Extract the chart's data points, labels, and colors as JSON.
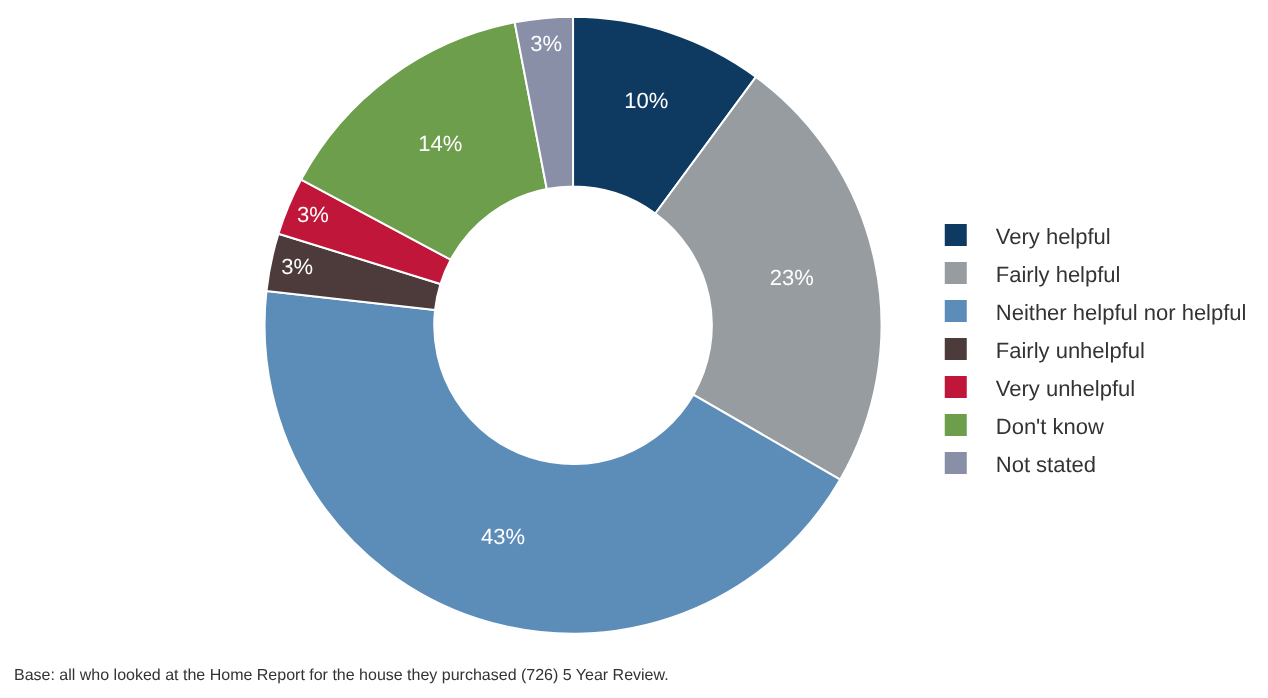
{
  "chart_data": {
    "type": "donut",
    "categories": [
      "Very helpful",
      "Fairly helpful",
      "Neither helpful nor helpful",
      "Fairly unhelpful",
      "Very unhelpful",
      "Don't know",
      "Not stated"
    ],
    "values": [
      10,
      23,
      43,
      3,
      3,
      14,
      3
    ],
    "value_labels": [
      "10%",
      "23%",
      "43%",
      "3%",
      "3%",
      "14%",
      "3%"
    ],
    "colors": [
      "#0e3a62",
      "#979ca1",
      "#5b8db8",
      "#4d3b3b",
      "#c0163a",
      "#6c9e4c",
      "#8a8fa8"
    ],
    "legend": "right",
    "annotations": [
      "Base: all who looked at the Home Report for the house they purchased (726) 5 Year Review."
    ]
  }
}
